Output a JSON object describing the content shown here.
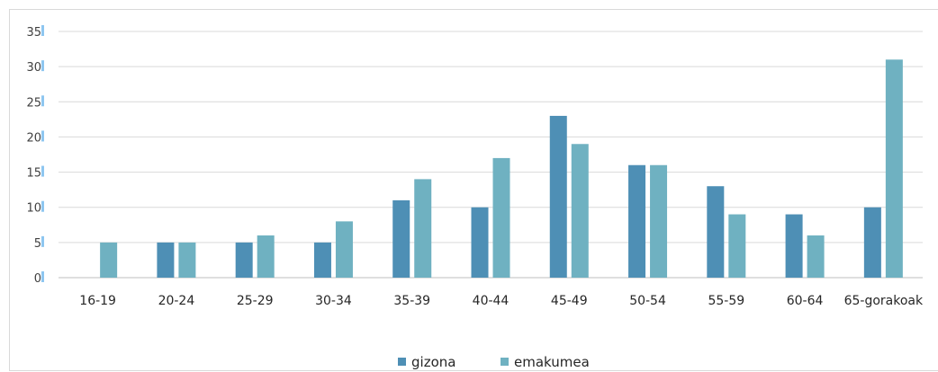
{
  "chart_data": {
    "type": "bar",
    "categories": [
      "16-19",
      "20-24",
      "25-29",
      "30-34",
      "35-39",
      "40-44",
      "45-49",
      "50-54",
      "55-59",
      "60-64",
      "65-gorakoak"
    ],
    "series": [
      {
        "name": "gizona",
        "values": [
          0,
          5,
          5,
          5,
          11,
          10,
          23,
          16,
          13,
          9,
          10
        ],
        "color": "#4e8fb5"
      },
      {
        "name": "emakumea",
        "values": [
          5,
          5,
          6,
          8,
          14,
          17,
          19,
          16,
          9,
          6,
          31
        ],
        "color": "#6fb1c1"
      }
    ],
    "y_ticks": [
      "0",
      "5",
      "10",
      "15",
      "20",
      "25",
      "30",
      "35"
    ],
    "ylim": [
      0,
      35
    ],
    "grid": true,
    "legend": "bottom",
    "tick_marker_color": "#8ec6f0",
    "grid_color": "#d9d9d9",
    "axis_color": "#bfbfbf"
  }
}
